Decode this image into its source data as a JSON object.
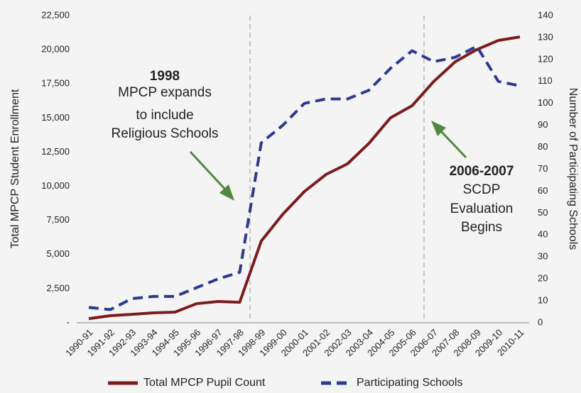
{
  "chart_data": {
    "type": "line",
    "categories": [
      "1990-91",
      "1991-92",
      "1992-93",
      "1993-94",
      "1994-95",
      "1995-96",
      "1996-97",
      "1997-98",
      "1998-99",
      "1999-00",
      "2000-01",
      "2001-02",
      "2002-03",
      "2003-04",
      "2004-05",
      "2005-06",
      "2006-07",
      "2007-08",
      "2008-09",
      "2009-10",
      "2010-11"
    ],
    "series": [
      {
        "name": "Total MPCP Pupil Count",
        "color": "#7b1c1f",
        "dash": false,
        "values": [
          300,
          520,
          620,
          730,
          780,
          1400,
          1560,
          1500,
          5980,
          7950,
          9610,
          10860,
          11640,
          13150,
          15020,
          15900,
          17670,
          19120,
          20010,
          20680,
          20940
        ]
      },
      {
        "name": "Participating Schools",
        "color": "#2b3a8f",
        "axis": "y2",
        "dash": true,
        "values": [
          7,
          6,
          11,
          12,
          12,
          16,
          20,
          23,
          82,
          90,
          100,
          102,
          102,
          106,
          116,
          124,
          119,
          121,
          126,
          110,
          108
        ]
      }
    ],
    "ylabel": "Total MPCP Student Enrollment",
    "y2label": "Number of Participating Schools",
    "ylim": [
      0,
      22500
    ],
    "yticks": [
      {
        "value": 0,
        "label": "-"
      },
      {
        "value": 2500,
        "label": "2,500"
      },
      {
        "value": 5000,
        "label": "5,000"
      },
      {
        "value": 7500,
        "label": "7,500"
      },
      {
        "value": 10000,
        "label": "10,000"
      },
      {
        "value": 12500,
        "label": "12,500"
      },
      {
        "value": 15000,
        "label": "15,000"
      },
      {
        "value": 17500,
        "label": "17,500"
      },
      {
        "value": 20000,
        "label": "20,000"
      },
      {
        "value": 22500,
        "label": "22,500"
      }
    ],
    "y2lim": [
      0,
      140
    ],
    "y2ticks": [
      0,
      10,
      20,
      30,
      40,
      50,
      60,
      70,
      80,
      90,
      100,
      110,
      120,
      130,
      140
    ],
    "annotations": [
      {
        "title": "1998",
        "text": [
          "MPCP expands",
          "to include",
          "Religious Schools"
        ]
      },
      {
        "title": "2006-2007",
        "text": [
          "SCDP",
          "Evaluation",
          "Begins"
        ]
      }
    ]
  }
}
